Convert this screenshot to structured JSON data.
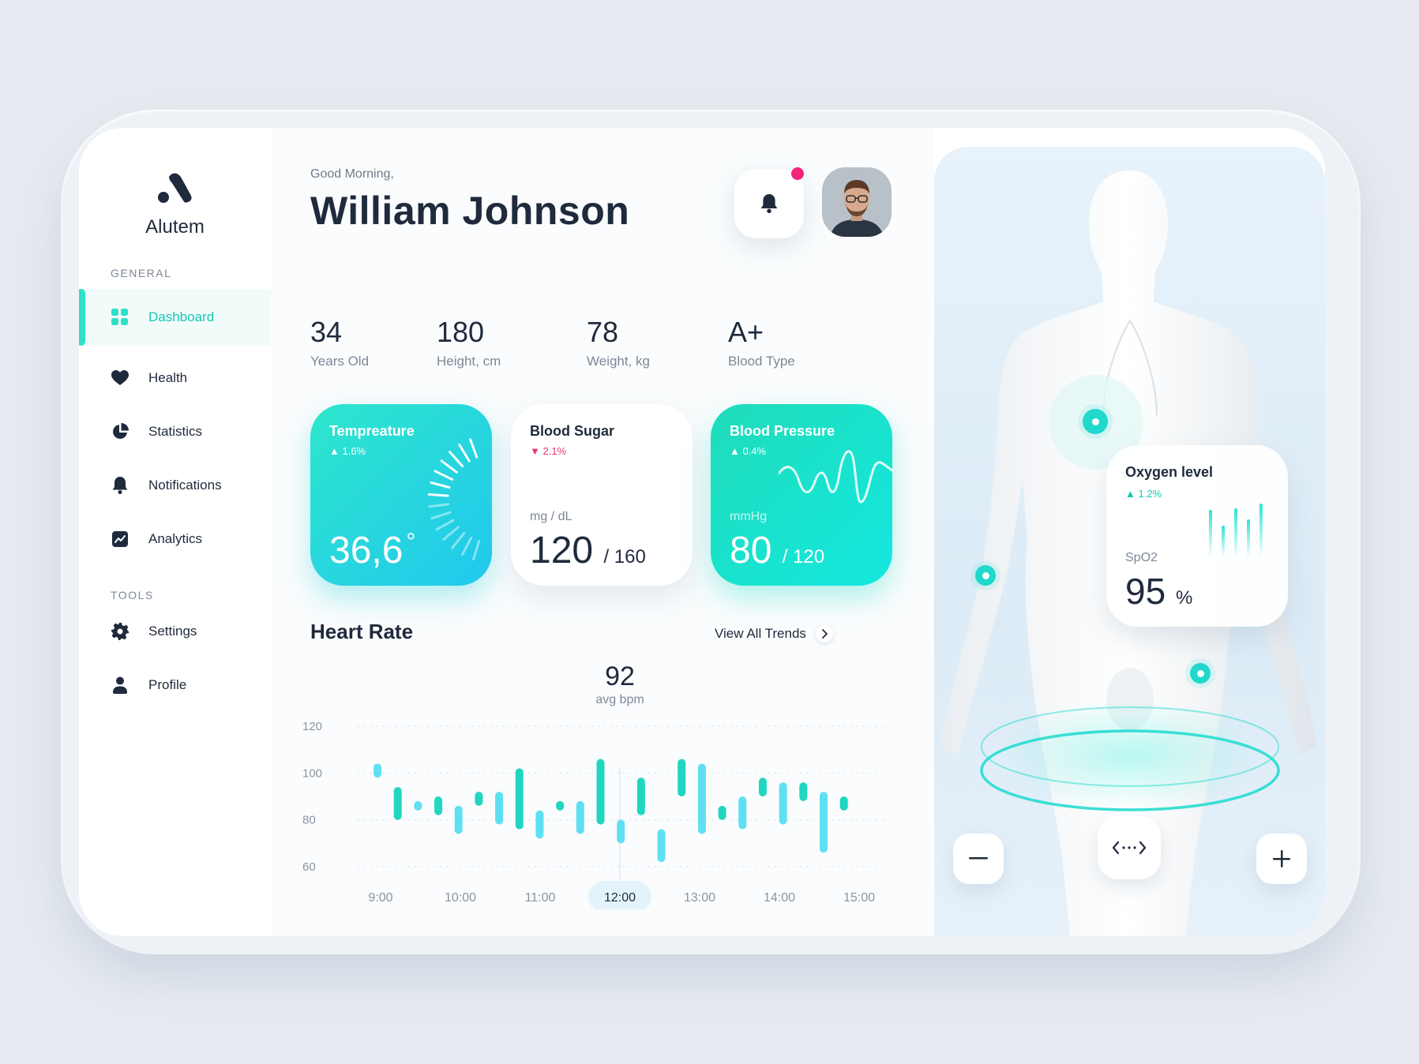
{
  "brand": {
    "name": "Alutem"
  },
  "sidebar": {
    "general_label": "GENERAL",
    "tools_label": "TOOLS",
    "items": [
      {
        "label": "Dashboard",
        "icon": "grid-icon",
        "active": true
      },
      {
        "label": "Health",
        "icon": "heart-icon"
      },
      {
        "label": "Statistics",
        "icon": "pie-chart-icon"
      },
      {
        "label": "Notifications",
        "icon": "bell-icon"
      },
      {
        "label": "Analytics",
        "icon": "trend-icon"
      }
    ],
    "tools": [
      {
        "label": "Settings",
        "icon": "gear-icon"
      },
      {
        "label": "Profile",
        "icon": "user-icon"
      }
    ]
  },
  "header": {
    "greeting": "Good Morning,",
    "name": "William Johnson",
    "notification_dot": true
  },
  "stats": [
    {
      "value": "34",
      "label": "Years Old"
    },
    {
      "value": "180",
      "label": "Height, cm"
    },
    {
      "value": "78",
      "label": "Weight, kg"
    },
    {
      "value": "A+",
      "label": "Blood Type"
    }
  ],
  "cards": {
    "temperature": {
      "title": "Tempreature",
      "trend": "1.6%",
      "trend_dir": "up",
      "value": "36,6",
      "unit_mark": "°"
    },
    "blood_sugar": {
      "title": "Blood Sugar",
      "trend": "2.1%",
      "trend_dir": "down",
      "unit": "mg / dL",
      "value": "120",
      "max": "/ 160"
    },
    "blood_pressure": {
      "title": "Blood Pressure",
      "trend": "0.4%",
      "trend_dir": "up",
      "unit": "mmHg",
      "value": "80",
      "max": "/ 120"
    }
  },
  "heart_rate": {
    "title": "Heart Rate",
    "link": "View All Trends",
    "avg_value": "92",
    "avg_label": "avg bpm",
    "selected_time": "12:00"
  },
  "oxygen": {
    "title": "Oxygen level",
    "trend": "1.2%",
    "trend_dir": "up",
    "unit": "SpO2",
    "value": "95",
    "unit_mark": "%"
  },
  "colors": {
    "accent": "#14c9b2",
    "cyan": "#5fe0f2",
    "teal": "#21d6c0",
    "alert": "#f2257a",
    "text": "#1f2a3c"
  },
  "chart_data": {
    "type": "bar",
    "title": "Heart Rate",
    "ylim": [
      60,
      120
    ],
    "y_ticks": [
      "120",
      "100",
      "80",
      "60"
    ],
    "x_ticks": [
      "9:00",
      "10:00",
      "11:00",
      "12:00",
      "13:00",
      "14:00",
      "15:00"
    ],
    "annotation": {
      "value": "92",
      "label": "avg bpm",
      "at": "12:00"
    },
    "series": [
      {
        "color": "cyan",
        "ranges": [
          [
            98,
            104
          ],
          [
            84,
            88
          ],
          [
            74,
            86
          ],
          [
            78,
            92
          ],
          [
            72,
            84
          ],
          [
            74,
            88
          ],
          [
            70,
            80
          ],
          [
            62,
            76
          ],
          [
            74,
            104
          ],
          [
            76,
            90
          ],
          [
            78,
            96
          ],
          [
            66,
            92
          ]
        ]
      },
      {
        "color": "teal",
        "ranges": [
          [
            80,
            94
          ],
          [
            82,
            90
          ],
          [
            86,
            92
          ],
          [
            76,
            102
          ],
          [
            84,
            88
          ],
          [
            78,
            106
          ],
          [
            82,
            98
          ],
          [
            90,
            106
          ],
          [
            80,
            86
          ],
          [
            90,
            98
          ],
          [
            88,
            96
          ],
          [
            84,
            90
          ]
        ]
      }
    ],
    "grid": true
  }
}
